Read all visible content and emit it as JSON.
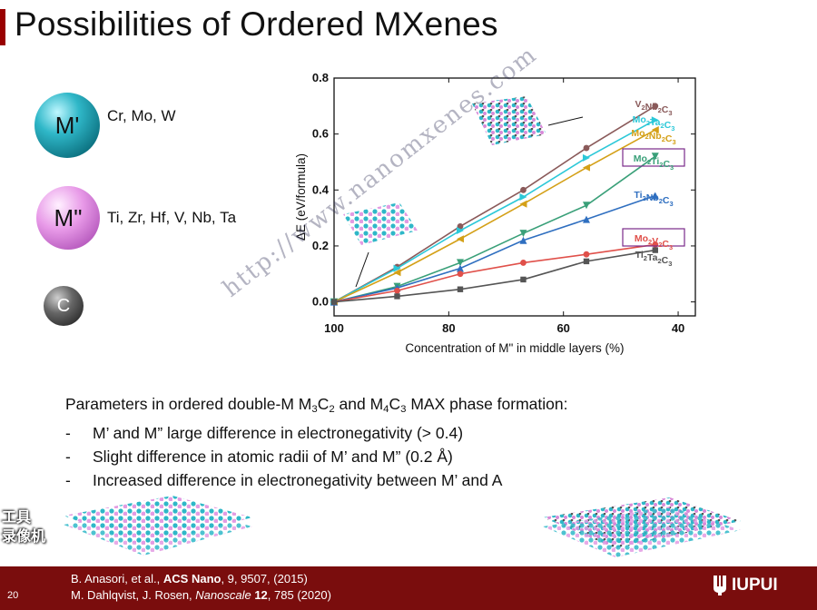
{
  "slide": {
    "title": "Possibilities of Ordered MXenes",
    "page_number": "20"
  },
  "elements": {
    "m_prime": {
      "ball_label": "M'",
      "text": "Cr, Mo, W"
    },
    "m_double_prime": {
      "ball_label": "M\"",
      "text": "Ti, Zr, Hf, V, Nb, Ta"
    },
    "carbon": {
      "ball_label": "C"
    }
  },
  "bullets": {
    "header_prefix": "Parameters in ordered double-M M",
    "header_mid": " and M",
    "header_suffix": " MAX phase formation:",
    "items": [
      "M’ and M” large difference in electronegativity (> 0.4)",
      "Slight difference in atomic radii of M’ and M” (0.2 Å)",
      "Increased difference in electronegativity between M’ and A"
    ],
    "dash": "-"
  },
  "footer": {
    "ref1_authors": "B. Anasori, et al., ",
    "ref1_journal": "ACS Nano",
    "ref1_rest": ", 9, 9507, (2015)",
    "ref2_authors": "M. Dahlqvist, J. Rosen, ",
    "ref2_journal": "Nanoscale",
    "ref2_volume": " 12",
    "ref2_rest": ", 785 (2020)",
    "brand": "IUPUI"
  },
  "overlay": {
    "watermark": "http://www.nanomxenes.com",
    "cn_line1": "工具",
    "cn_line2": "录像机"
  },
  "colors": {
    "footer": "#7a0d0d",
    "title_accent": "#990000",
    "m_prime_ball": "#2fb7c8",
    "m_double_prime_ball": "#e89ae8"
  },
  "chart_data": {
    "type": "line",
    "xlabel": "Concentration of M\" in middle layers (%)",
    "ylabel": "ΔE (eV/formula)",
    "xlim": [
      100,
      37
    ],
    "ylim": [
      -0.05,
      0.8
    ],
    "xticks": [
      100,
      80,
      60,
      40
    ],
    "yticks": [
      0.0,
      0.2,
      0.4,
      0.6,
      0.8
    ],
    "x": [
      100,
      89,
      78,
      67,
      56,
      44
    ],
    "series": [
      {
        "name": "V2Nb2C3",
        "label_parts": [
          [
            "V",
            "2"
          ],
          [
            "Nb",
            "2"
          ],
          [
            "C",
            "3"
          ]
        ],
        "color": "#8a5a5a",
        "marker": "circle",
        "values": [
          0.0,
          0.125,
          0.27,
          0.4,
          0.55,
          0.7
        ],
        "boxed": false
      },
      {
        "name": "Mo2Ta2C3",
        "label_parts": [
          [
            "Mo",
            "2"
          ],
          [
            "Ta",
            "2"
          ],
          [
            "C",
            "3"
          ]
        ],
        "color": "#2cc8d8",
        "marker": "triangle-right",
        "values": [
          0.0,
          0.12,
          0.255,
          0.375,
          0.515,
          0.65
        ],
        "boxed": false
      },
      {
        "name": "Mo2Nb2C3",
        "label_parts": [
          [
            "Mo",
            "2"
          ],
          [
            "Nb",
            "2"
          ],
          [
            "C",
            "3"
          ]
        ],
        "color": "#d4a017",
        "marker": "triangle-left",
        "values": [
          0.0,
          0.105,
          0.225,
          0.35,
          0.48,
          0.615
        ],
        "boxed": false
      },
      {
        "name": "Mo2Ti2C3",
        "label_parts": [
          [
            "Mo",
            "2"
          ],
          [
            "Ti",
            "2"
          ],
          [
            "C",
            "3"
          ]
        ],
        "color": "#3aa079",
        "marker": "triangle-down",
        "values": [
          0.0,
          0.055,
          0.14,
          0.245,
          0.345,
          0.52
        ],
        "boxed": true
      },
      {
        "name": "Ti2Nb2C3",
        "label_parts": [
          [
            "Ti",
            "2"
          ],
          [
            "Nb",
            "2"
          ],
          [
            "C",
            "3"
          ]
        ],
        "color": "#2f6fc0",
        "marker": "triangle-up",
        "values": [
          0.0,
          0.05,
          0.12,
          0.22,
          0.295,
          0.38
        ],
        "boxed": false
      },
      {
        "name": "Mo2V2C3",
        "label_parts": [
          [
            "Mo",
            "2"
          ],
          [
            "V",
            "2"
          ],
          [
            "C",
            "3"
          ]
        ],
        "color": "#e0504a",
        "marker": "circle",
        "values": [
          0.0,
          0.04,
          0.1,
          0.14,
          0.17,
          0.205
        ],
        "boxed": true
      },
      {
        "name": "Ti2Ta2C3",
        "label_parts": [
          [
            "Ti",
            "2"
          ],
          [
            "Ta",
            "2"
          ],
          [
            "C",
            "3"
          ]
        ],
        "color": "#555555",
        "marker": "square",
        "values": [
          0.0,
          0.02,
          0.045,
          0.08,
          0.145,
          0.185
        ],
        "boxed": false
      }
    ]
  }
}
